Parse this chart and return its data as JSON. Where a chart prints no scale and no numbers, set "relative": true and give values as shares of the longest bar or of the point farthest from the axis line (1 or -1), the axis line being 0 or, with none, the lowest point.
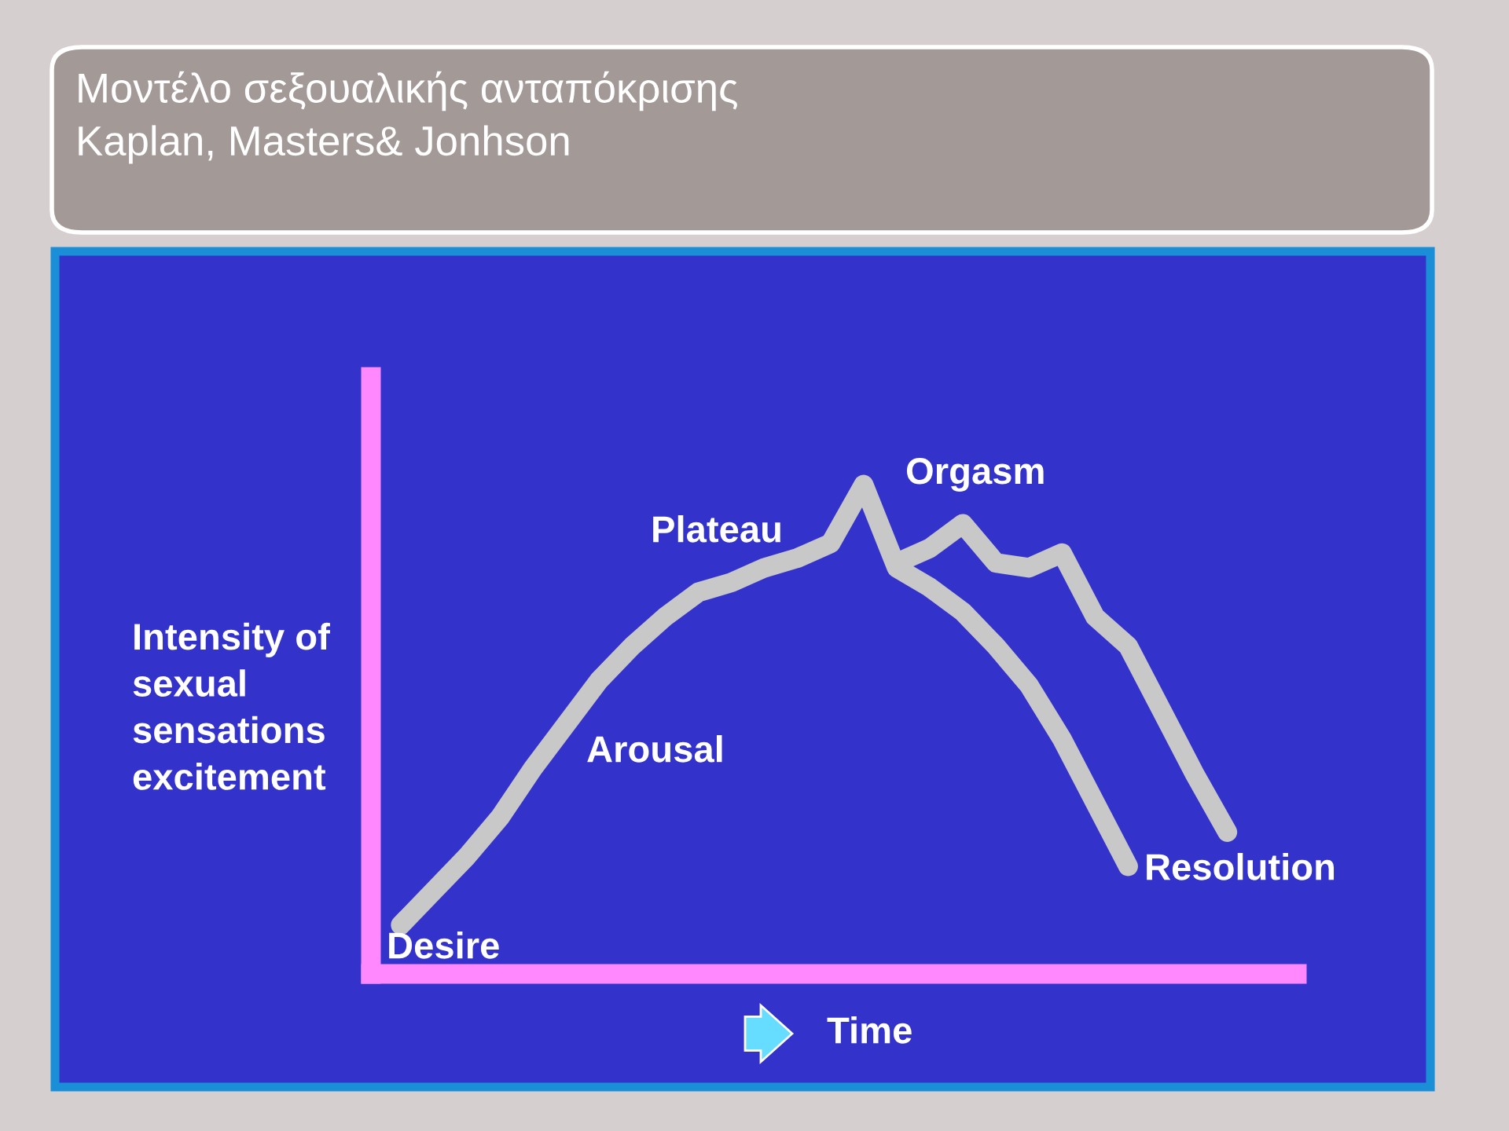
{
  "chart_data": {
    "type": "line",
    "title": "Μοντέλο σεξουαλικής ανταπόκρισης",
    "subtitle": "Kaplan, Masters& Jonhson",
    "xlabel": "Time",
    "ylabel": "Intensity of sexual sensations excitement",
    "relative": true,
    "grid": false,
    "legend": false,
    "line_style": "solid",
    "categories": [
      null,
      null,
      null,
      null,
      null,
      null,
      null,
      null,
      null,
      null,
      null,
      null,
      null,
      null,
      null,
      null,
      null,
      null,
      null,
      null,
      null,
      null,
      null,
      null,
      null,
      null
    ],
    "series": [
      {
        "color": "#c8c8c8",
        "values": [
          0.1,
          0.17,
          0.24,
          0.32,
          0.42,
          0.51,
          0.6,
          0.67,
          0.73,
          0.78,
          0.8,
          0.83,
          0.85,
          0.88,
          1,
          0.83,
          0.79,
          0.74,
          0.67,
          0.59,
          0.48,
          0.35,
          0.22,
          null,
          null,
          null
        ]
      },
      {
        "color": "#c8c8c8",
        "values": [
          null,
          null,
          null,
          null,
          null,
          null,
          null,
          null,
          null,
          null,
          null,
          null,
          null,
          null,
          null,
          0.84,
          0.87,
          0.92,
          0.84,
          0.83,
          0.86,
          0.73,
          0.67,
          0.54,
          0.41,
          0.29
        ]
      }
    ],
    "annotations": [
      "Desire",
      "Arousal",
      "Plateau",
      "Orgasm",
      "Resolution"
    ]
  }
}
